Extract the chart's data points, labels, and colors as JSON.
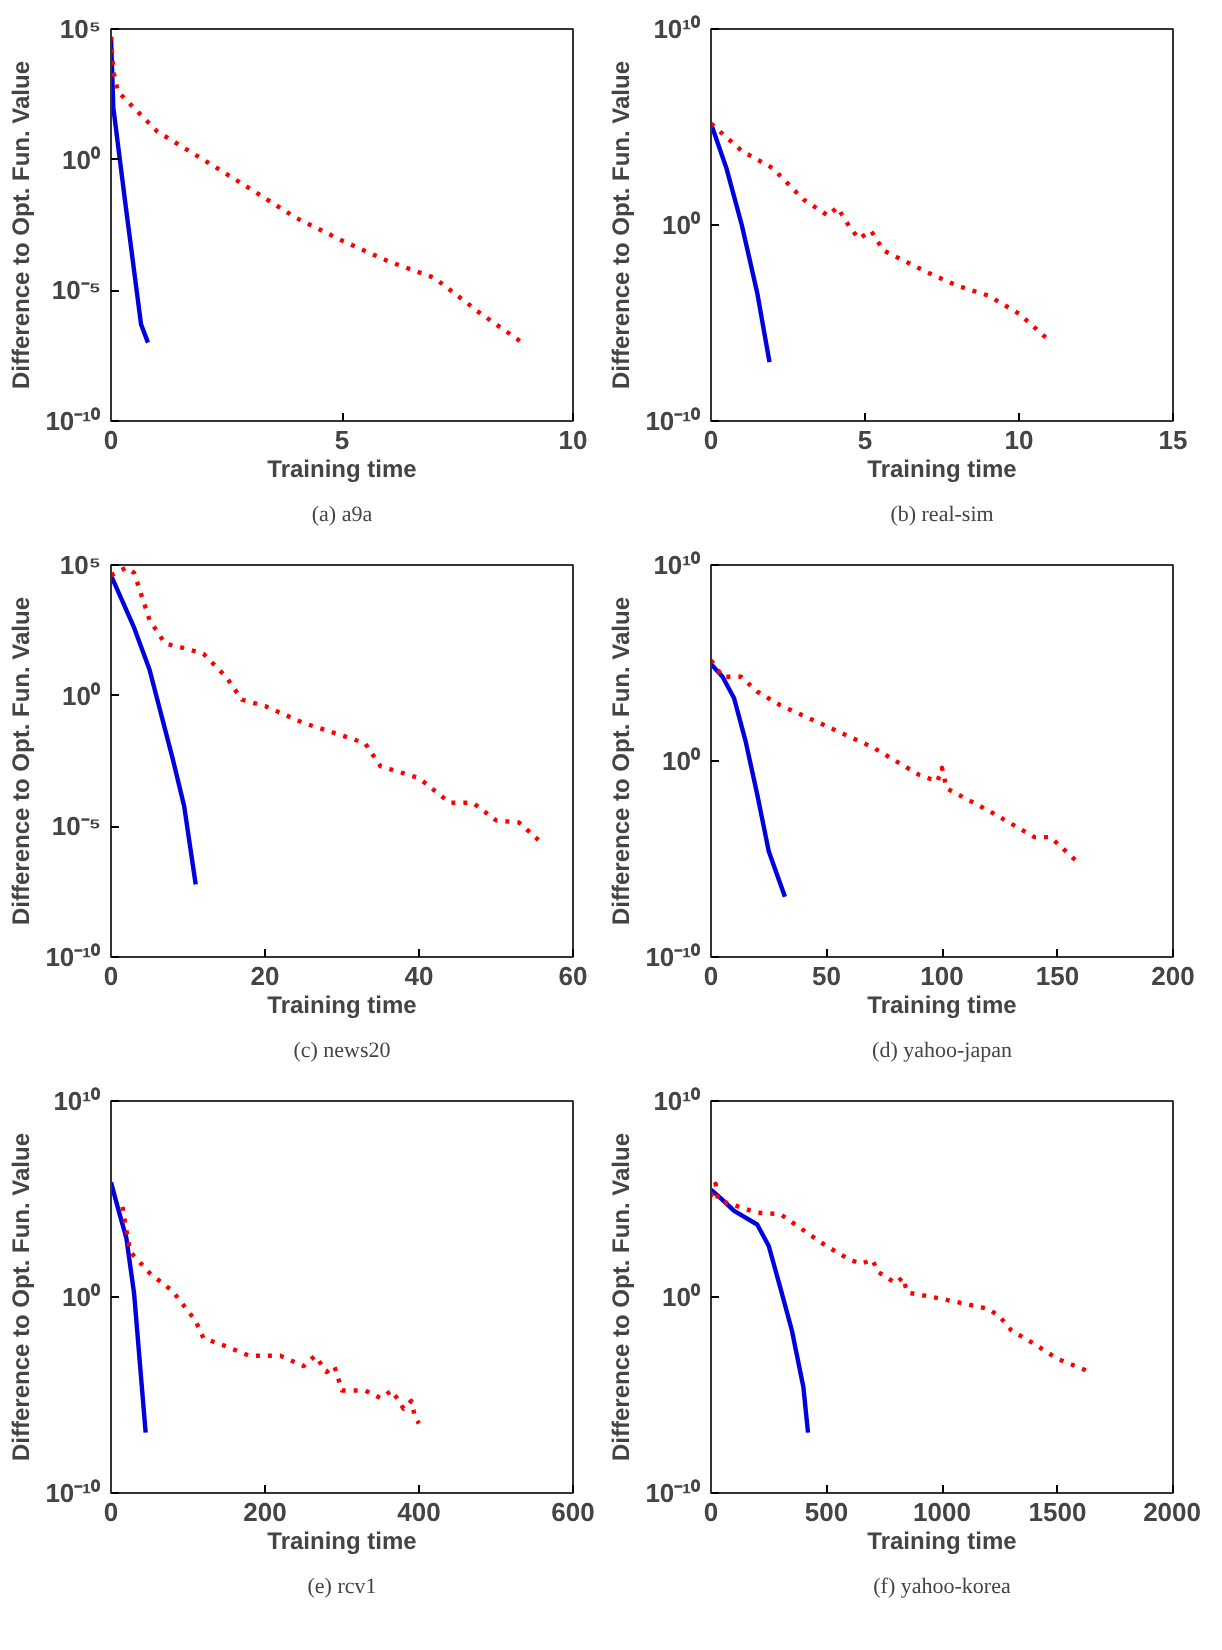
{
  "chart_data": [
    {
      "type": "line",
      "title": "(a) a9a",
      "xlabel": "Training time",
      "ylabel": "Difference to Opt. Fun. Value",
      "log": "y",
      "grid": false,
      "xlim": [
        0,
        10
      ],
      "xticks": [
        0,
        5,
        10
      ],
      "ylim": [
        1e-10,
        100000.0
      ],
      "yticks": [
        {
          "value": 1e-10,
          "label": "10⁻¹⁰"
        },
        {
          "value": 1e-05,
          "label": "10⁻⁵"
        },
        {
          "value": 1,
          "label": "10⁰"
        },
        {
          "value": 100000.0,
          "label": "10⁵"
        }
      ],
      "series": [
        {
          "color": "#0000dd",
          "line_style": "solid",
          "x": [
            0,
            0.05,
            0.3,
            0.65,
            0.8
          ],
          "values": [
            50000.0,
            100,
            0.03,
            5e-07,
            1e-07
          ]
        },
        {
          "color": "#ff0000",
          "line_style": "dotted",
          "x": [
            0,
            0.05,
            0.15,
            1,
            2,
            3,
            4,
            5,
            6,
            7,
            8,
            8.9
          ],
          "values": [
            50000.0,
            2500,
            400,
            12,
            1,
            0.08,
            0.006,
            0.0008,
            0.00013,
            3e-05,
            1.3e-06,
            1e-07
          ]
        }
      ]
    },
    {
      "type": "line",
      "title": "(b) real-sim",
      "xlabel": "Training time",
      "ylabel": "Difference to Opt. Fun. Value",
      "log": "y",
      "grid": false,
      "xlim": [
        0,
        15
      ],
      "xticks": [
        0,
        5,
        10,
        15
      ],
      "ylim": [
        1e-10,
        10000000000.0
      ],
      "yticks": [
        {
          "value": 1e-10,
          "label": "10⁻¹⁰"
        },
        {
          "value": 1,
          "label": "10⁰"
        },
        {
          "value": 10000000000.0,
          "label": "10¹⁰"
        }
      ],
      "series": [
        {
          "color": "#0000dd",
          "line_style": "solid",
          "x": [
            0,
            0.5,
            1,
            1.5,
            1.9
          ],
          "values": [
            150000.0,
            800,
            1,
            0.00035,
            1e-07
          ]
        },
        {
          "color": "#ff0000",
          "line_style": "dotted",
          "x": [
            0,
            1,
            2,
            3,
            3.8,
            4.1,
            4.5,
            4.8,
            5.2,
            5.6,
            7,
            8,
            9,
            10,
            11
          ],
          "values": [
            150000.0,
            6000,
            800,
            20,
            3,
            8,
            0.8,
            0.2,
            0.5,
            0.05,
            0.004,
            0.0008,
            0.00025,
            3e-05,
            1.2e-06
          ]
        }
      ]
    },
    {
      "type": "line",
      "title": "(c) news20",
      "xlabel": "Training time",
      "ylabel": "Difference to Opt. Fun. Value",
      "log": "y",
      "grid": false,
      "xlim": [
        0,
        60
      ],
      "xticks": [
        0,
        20,
        40,
        60
      ],
      "ylim": [
        1e-10,
        100000.0
      ],
      "yticks": [
        {
          "value": 1e-10,
          "label": "10⁻¹⁰"
        },
        {
          "value": 1e-05,
          "label": "10⁻⁵"
        },
        {
          "value": 1,
          "label": "10⁰"
        },
        {
          "value": 100000.0,
          "label": "10⁵"
        }
      ],
      "series": [
        {
          "color": "#0000dd",
          "line_style": "solid",
          "x": [
            0,
            3,
            5,
            8,
            9.5,
            11
          ],
          "values": [
            40000.0,
            400,
            10,
            0.004,
            6e-05,
            6e-08
          ]
        },
        {
          "color": "#ff0000",
          "line_style": "dotted",
          "x": [
            0,
            2,
            3,
            5,
            7,
            10,
            12,
            15,
            17,
            20,
            25,
            30,
            33,
            35,
            40,
            44,
            47,
            50,
            53,
            55.5
          ],
          "values": [
            40000.0,
            80000.0,
            50000.0,
            800,
            100,
            60,
            40,
            5,
            0.7,
            0.4,
            0.09,
            0.03,
            0.015,
            0.002,
            0.0007,
            8e-05,
            8e-05,
            1.7e-05,
            1.4e-05,
            3e-06
          ]
        }
      ]
    },
    {
      "type": "line",
      "title": "(d) yahoo-japan",
      "xlabel": "Training time",
      "ylabel": "Difference to Opt. Fun. Value",
      "log": "y",
      "grid": false,
      "xlim": [
        0,
        200
      ],
      "xticks": [
        0,
        50,
        100,
        150,
        200
      ],
      "ylim": [
        1e-10,
        10000000000.0
      ],
      "yticks": [
        {
          "value": 1e-10,
          "label": "10⁻¹⁰"
        },
        {
          "value": 1,
          "label": "10⁰"
        },
        {
          "value": 10000000000.0,
          "label": "10¹⁰"
        }
      ],
      "series": [
        {
          "color": "#0000dd",
          "line_style": "solid",
          "x": [
            0,
            5,
            10,
            15,
            20,
            25,
            32
          ],
          "values": [
            90000.0,
            20000.0,
            1600,
            10,
            0.02,
            2.5e-05,
            1.2e-07
          ]
        },
        {
          "color": "#ff0000",
          "line_style": "dotted",
          "x": [
            0,
            5,
            13,
            20,
            30,
            50,
            70,
            90,
            98,
            100,
            102,
            120,
            140,
            147,
            160
          ],
          "values": [
            140000.0,
            20000.0,
            20000.0,
            3500,
            700,
            60,
            5,
            0.2,
            0.09,
            0.45,
            0.04,
            0.003,
            0.00013,
            0.00013,
            5e-06
          ]
        }
      ]
    },
    {
      "type": "line",
      "title": "(e) rcv1",
      "xlabel": "Training time",
      "ylabel": "Difference to Opt. Fun. Value",
      "log": "y",
      "grid": false,
      "xlim": [
        0,
        600
      ],
      "xticks": [
        0,
        200,
        400,
        600
      ],
      "ylim": [
        1e-10,
        10000000000.0
      ],
      "yticks": [
        {
          "value": 1e-10,
          "label": "10⁻¹⁰"
        },
        {
          "value": 1,
          "label": "10⁰"
        },
        {
          "value": 10000000000.0,
          "label": "10¹⁰"
        }
      ],
      "series": [
        {
          "color": "#0000dd",
          "line_style": "solid",
          "x": [
            0,
            10,
            20,
            30,
            45
          ],
          "values": [
            700000.0,
            25000.0,
            1000,
            1.5,
            1.2e-07
          ]
        },
        {
          "color": "#ff0000",
          "line_style": "dotted",
          "x": [
            15,
            20,
            25,
            50,
            80,
            110,
            120,
            150,
            180,
            220,
            250,
            265,
            280,
            290,
            300,
            330,
            350,
            365,
            380,
            390,
            395,
            400
          ],
          "values": [
            40000.0,
            2500,
            200,
            17,
            2,
            0.06,
            0.008,
            0.003,
            0.001,
            0.001,
            0.0003,
            0.001,
            0.00015,
            0.0003,
            1.7e-05,
            1.7e-05,
            7e-06,
            1.7e-05,
            2e-06,
            5e-06,
            7e-07,
            3.5e-07
          ]
        }
      ]
    },
    {
      "type": "line",
      "title": "(f) yahoo-korea",
      "xlabel": "Training time",
      "ylabel": "Difference to Opt. Fun. Value",
      "log": "y",
      "grid": false,
      "xlim": [
        0,
        2000
      ],
      "xticks": [
        0,
        500,
        1000,
        1500,
        2000
      ],
      "ylim": [
        1e-10,
        10000000000.0
      ],
      "yticks": [
        {
          "value": 1e-10,
          "label": "10⁻¹⁰"
        },
        {
          "value": 1,
          "label": "10⁰"
        },
        {
          "value": 10000000000.0,
          "label": "10¹⁰"
        }
      ],
      "series": [
        {
          "color": "#0000dd",
          "line_style": "solid",
          "x": [
            0,
            50,
            100,
            200,
            250,
            300,
            350,
            400,
            420
          ],
          "values": [
            300000.0,
            90000.0,
            25000.0,
            5000,
            400,
            3,
            0.02,
            2.5e-05,
            1.2e-07
          ]
        },
        {
          "color": "#ff0000",
          "line_style": "dotted",
          "x": [
            0,
            20,
            30,
            200,
            300,
            450,
            500,
            600,
            650,
            700,
            720,
            800,
            830,
            850,
            1000,
            1200,
            1250,
            1300,
            1400,
            1500,
            1640
          ],
          "values": [
            140000.0,
            600000.0,
            90000.0,
            20000.0,
            17000.0,
            1000,
            400,
            80,
            50,
            80,
            20,
            5,
            10,
            1.7,
            0.8,
            0.25,
            0.1,
            0.02,
            0.004,
            0.0007,
            0.00015
          ]
        }
      ]
    }
  ]
}
